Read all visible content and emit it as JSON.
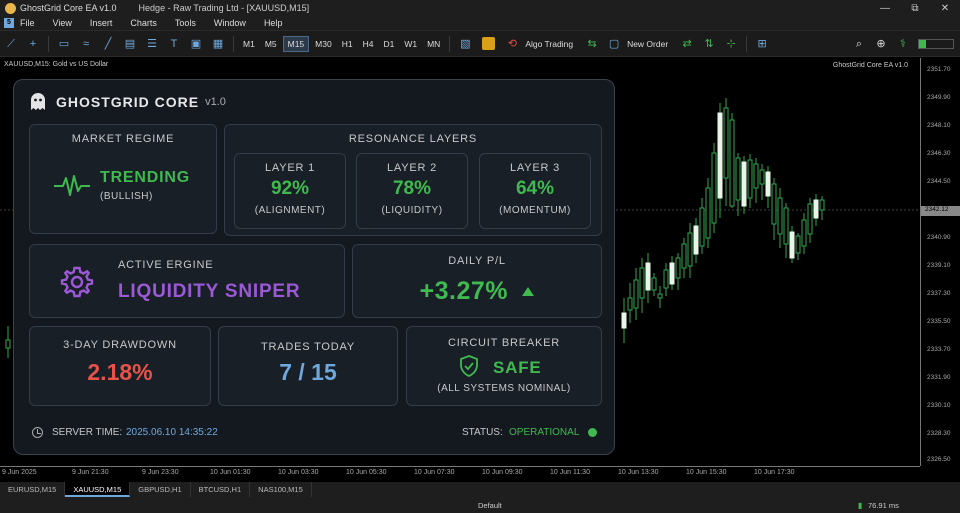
{
  "window": {
    "title": "GhostGrid Core EA v1.0",
    "center_title": "Hedge - Raw Trading Ltd - [XAUUSD,M15]",
    "controls": [
      "—",
      "⧉",
      "✕"
    ]
  },
  "menu": [
    "File",
    "View",
    "Insert",
    "Charts",
    "Tools",
    "Window",
    "Help"
  ],
  "toolbar": {
    "timeframes": [
      "M1",
      "M5",
      "M15",
      "M30",
      "H1",
      "H4",
      "D1",
      "W1",
      "MN"
    ],
    "active_timeframe": "M15",
    "algo_trading": "Algo Trading",
    "new_order": "New Order"
  },
  "chart": {
    "symbol_header": "XAUUSD,M15:  Gold vs US Dollar",
    "ea_label": "GhostGrid Core EA v1.0",
    "price_ticks": [
      "2351.70",
      "2349.90",
      "2348.10",
      "2346.30",
      "2344.50",
      "2342.70",
      "2340.90",
      "2339.10",
      "2337.30",
      "2335.50",
      "2333.70",
      "2331.90",
      "2330.10",
      "2328.30",
      "2326.50"
    ],
    "current_price": "2342.12",
    "time_ticks": [
      "9 Jun 2025",
      "9 Jun 21:30",
      "9 Jun 23:30",
      "10 Jun 01:30",
      "10 Jun 03:30",
      "10 Jun 05:30",
      "10 Jun 07:30",
      "10 Jun 09:30",
      "10 Jun 11:30",
      "10 Jun 13:30",
      "10 Jun 15:30",
      "10 Jun 17:30"
    ]
  },
  "tabs": [
    "EURUSD,M15",
    "XAUUSD,M15",
    "GBPUSD,H1",
    "BTCUSD,H1",
    "NAS100,M15"
  ],
  "active_tab": "XAUUSD,M15",
  "statusbar": {
    "profile": "Default",
    "ping": "76.91 ms"
  },
  "dashboard": {
    "title": "GHOSTGRID CORE",
    "version": "v1.0",
    "market_regime": {
      "label": "MARKET REGIME",
      "value": "TRENDING",
      "sub": "(BULLISH)"
    },
    "resonance": {
      "label": "RESONANCE LAYERS",
      "layers": [
        {
          "name": "LAYER 1",
          "value": "92%",
          "sub": "(ALIGNMENT)"
        },
        {
          "name": "LAYER 2",
          "value": "78%",
          "sub": "(LIQUIDITY)"
        },
        {
          "name": "LAYER 3",
          "value": "64%",
          "sub": "(MOMENTUM)"
        }
      ]
    },
    "active_engine": {
      "label": "ACTIVE ERGINE",
      "value": "LIQUIDITY SNIPER"
    },
    "daily_pl": {
      "label": "DAILY P/L",
      "value": "+3.27%"
    },
    "drawdown": {
      "label": "3-DAY DRAWDOWN",
      "value": "2.18%"
    },
    "trades_today": {
      "label": "TRADES TODAY",
      "value": "7 / 15"
    },
    "circuit_breaker": {
      "label": "CIRCUIT BREAKER",
      "value": "SAFE",
      "sub": "(ALL SYSTEMS NOMINAL)"
    },
    "server_time_label": "SERVER TIME:",
    "server_time": "2025.06.10 14:35:22",
    "status_label": "STATUS:",
    "status_value": "OPERATIONAL"
  },
  "colors": {
    "green": "#3fb950",
    "red": "#e5534b",
    "blue": "#6fa8dc",
    "purple": "#9b59d6"
  }
}
